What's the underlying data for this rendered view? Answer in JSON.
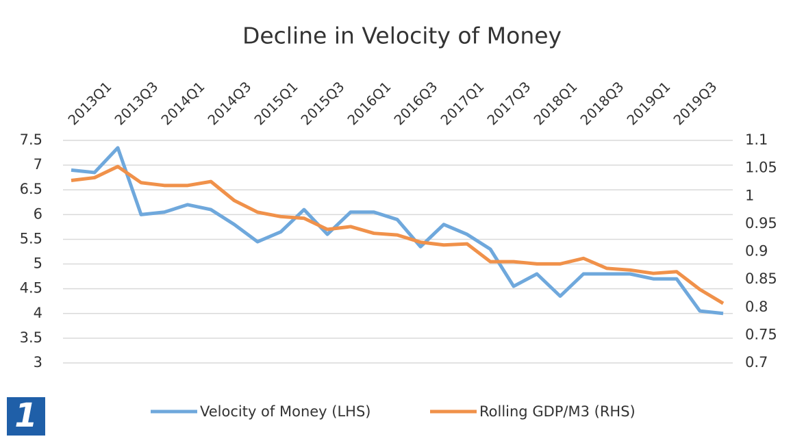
{
  "logo_text": "1",
  "chart_data": {
    "type": "line",
    "title": "Decline in Velocity of Money",
    "categories": [
      "2013Q1",
      null,
      "2013Q3",
      null,
      "2014Q1",
      null,
      "2014Q3",
      null,
      "2015Q1",
      null,
      "2015Q3",
      null,
      "2016Q1",
      null,
      "2016Q3",
      null,
      "2017Q1",
      null,
      "2017Q3",
      null,
      "2018Q1",
      null,
      "2018Q3",
      null,
      "2019Q1",
      null,
      "2019Q3",
      null,
      null
    ],
    "series": [
      {
        "name": "Velocity of Money (LHS)",
        "color": "#6fa8dc",
        "axis": "y",
        "values": [
          6.9,
          6.85,
          7.35,
          6.0,
          6.05,
          6.2,
          6.1,
          5.8,
          5.45,
          5.65,
          6.1,
          5.6,
          6.05,
          6.05,
          5.9,
          5.35,
          5.8,
          5.6,
          5.3,
          4.55,
          4.8,
          4.35,
          4.8,
          4.8,
          4.8,
          4.7,
          4.7,
          4.05,
          4.0
        ]
      },
      {
        "name": "Rolling GDP/M3 (RHS)",
        "color": "#f0914a",
        "axis": "y2",
        "values": [
          1.028,
          1.033,
          1.053,
          1.024,
          1.019,
          1.019,
          1.026,
          0.992,
          0.971,
          0.963,
          0.96,
          0.94,
          0.945,
          0.933,
          0.93,
          0.917,
          0.912,
          0.914,
          0.882,
          0.882,
          0.878,
          0.878,
          0.888,
          0.87,
          0.867,
          0.861,
          0.864,
          0.832,
          0.807
        ]
      }
    ],
    "ylim": [
      3,
      7.5
    ],
    "yticks": [
      3,
      3.5,
      4,
      4.5,
      5,
      5.5,
      6,
      6.5,
      7,
      7.5
    ],
    "y2lim": [
      0.7,
      1.1
    ],
    "y2ticks": [
      0.7,
      0.75,
      0.8,
      0.85,
      0.9,
      0.95,
      1,
      1.05,
      1.1
    ],
    "grid": true,
    "legend": "bottom"
  }
}
